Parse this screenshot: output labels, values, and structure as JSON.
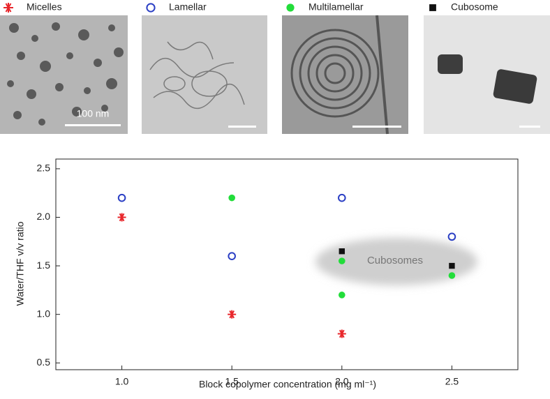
{
  "chart_data": {
    "type": "scatter",
    "xlabel": "Block copolymer concentration (mg ml⁻¹)",
    "ylabel": "Water/THF v/v ratio",
    "annotation": "Cubosomes",
    "scale_bar_label": "100 nm",
    "xlim": [
      0.7,
      2.8
    ],
    "ylim": [
      0.43,
      2.6
    ],
    "xticks": [
      {
        "value": 1,
        "label": "1.0"
      },
      1.5,
      {
        "value": 2,
        "label": "2.0"
      },
      2.5
    ],
    "yticks": [
      0.5,
      {
        "value": 1,
        "label": "1.0"
      },
      1.5,
      {
        "value": 2,
        "label": "2.0"
      },
      2.5
    ],
    "grid": false,
    "series": [
      {
        "name": "Micelles",
        "color": "#e8262b",
        "marker": "asterisk",
        "x": [
          1.0,
          1.5,
          2.0
        ],
        "values": [
          2.0,
          1.0,
          0.8
        ]
      },
      {
        "name": "Lamellar",
        "color": "#2b3fc4",
        "marker": "open-circle",
        "x": [
          1.0,
          1.5,
          2.0,
          2.5
        ],
        "values": [
          2.2,
          1.6,
          2.2,
          1.8
        ]
      },
      {
        "name": "Multilamellar",
        "color": "#22dd3a",
        "marker": "circle",
        "x": [
          1.5,
          2.0,
          2.0,
          2.5
        ],
        "values": [
          2.2,
          1.55,
          1.2,
          1.4
        ]
      },
      {
        "name": "Cubosome",
        "color": "#111111",
        "marker": "square",
        "x": [
          2.0,
          2.5
        ],
        "values": [
          1.65,
          1.5
        ]
      }
    ]
  }
}
